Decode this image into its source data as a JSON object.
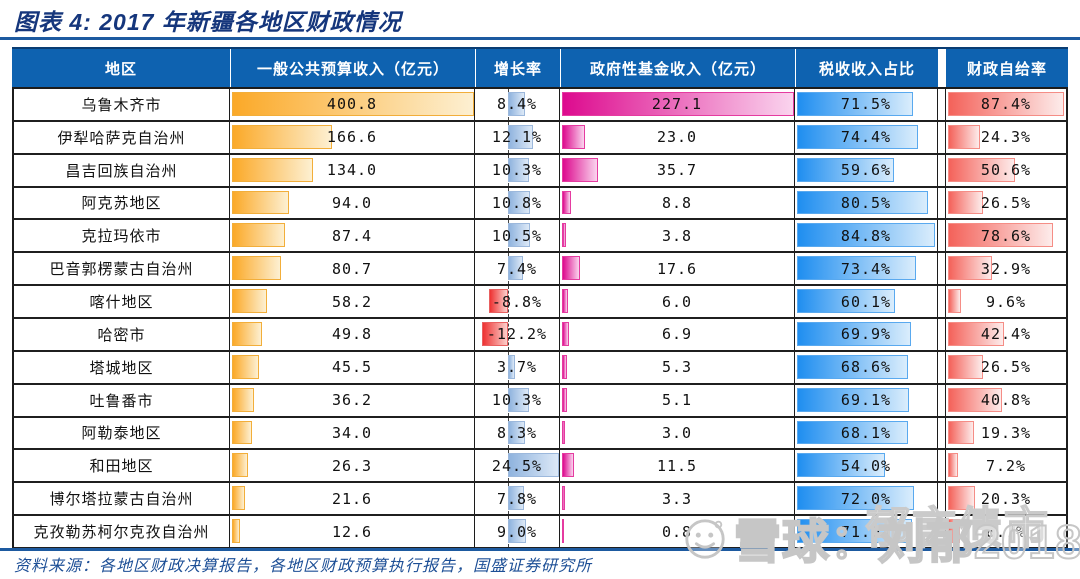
{
  "figure": {
    "title": "图表 4: 2017 年新疆各地区财政情况",
    "source": "资料来源：各地区财政决算报告，各地区财政预算执行报告，国盛证券研究所"
  },
  "table": {
    "columns": [
      "地区",
      "一般公共预算收入（亿元）",
      "增长率",
      "政府性基金收入（亿元）",
      "税收收入占比",
      "财政自给率"
    ]
  },
  "chart_data": {
    "type": "table",
    "title": "图表 4: 2017 年新疆各地区财政情况",
    "categories": [
      "乌鲁木齐市",
      "伊犁哈萨克自治州",
      "昌吉回族自治州",
      "阿克苏地区",
      "克拉玛依市",
      "巴音郭楞蒙古自治州",
      "喀什地区",
      "哈密市",
      "塔城地区",
      "吐鲁番市",
      "阿勒泰地区",
      "和田地区",
      "博尔塔拉蒙古自治州",
      "克孜勒苏柯尔克孜自治州"
    ],
    "series": [
      {
        "name": "一般公共预算收入（亿元）",
        "values": [
          400.8,
          166.6,
          134.0,
          94.0,
          87.4,
          80.7,
          58.2,
          49.8,
          45.5,
          36.2,
          34.0,
          26.3,
          21.6,
          12.6
        ]
      },
      {
        "name": "增长率(%)",
        "values": [
          8.4,
          12.1,
          10.3,
          10.8,
          10.5,
          7.4,
          -8.8,
          -12.2,
          3.7,
          10.3,
          8.3,
          24.5,
          7.8,
          9.0
        ]
      },
      {
        "name": "政府性基金收入（亿元）",
        "values": [
          227.1,
          23.0,
          35.7,
          8.8,
          3.8,
          17.6,
          6.0,
          6.9,
          5.3,
          5.1,
          3.0,
          11.5,
          3.3,
          0.8
        ]
      },
      {
        "name": "税收收入占比(%)",
        "values": [
          71.5,
          74.4,
          59.6,
          80.5,
          84.8,
          73.4,
          60.1,
          69.9,
          68.6,
          69.1,
          68.1,
          54.0,
          72.0,
          71.0
        ]
      },
      {
        "name": "财政自给率(%)",
        "values": [
          87.4,
          24.3,
          50.6,
          26.5,
          78.6,
          32.9,
          9.6,
          42.4,
          26.5,
          40.8,
          19.3,
          7.2,
          20.3,
          8.7
        ]
      }
    ],
    "bar_scales": {
      "budget_full": 400.8,
      "fund_full": 227.1,
      "tax_full": 84.8,
      "self_full": 87.4,
      "growth_axis": [
        -15.5,
        24.5
      ]
    },
    "layout": {
      "grid": "off",
      "legend": "none",
      "bars": "inline-table-cells"
    }
  },
  "watermark": {
    "main": "雪球：刘郁2018",
    "secondary": "郁言债市",
    "logo": "xueqiu-snowball-logo"
  },
  "colors": {
    "header_bg": "#0e62b0",
    "title": "#15367c",
    "rule": "#1d5aa0",
    "budget_bar": "#fba928",
    "fund_bar": "#dd0a8e",
    "tax_bar": "#1f8ef0",
    "self_bar": "#f4625a",
    "growth_pos_bar": "#8fb3de",
    "growth_neg_bar": "#ee3232"
  }
}
